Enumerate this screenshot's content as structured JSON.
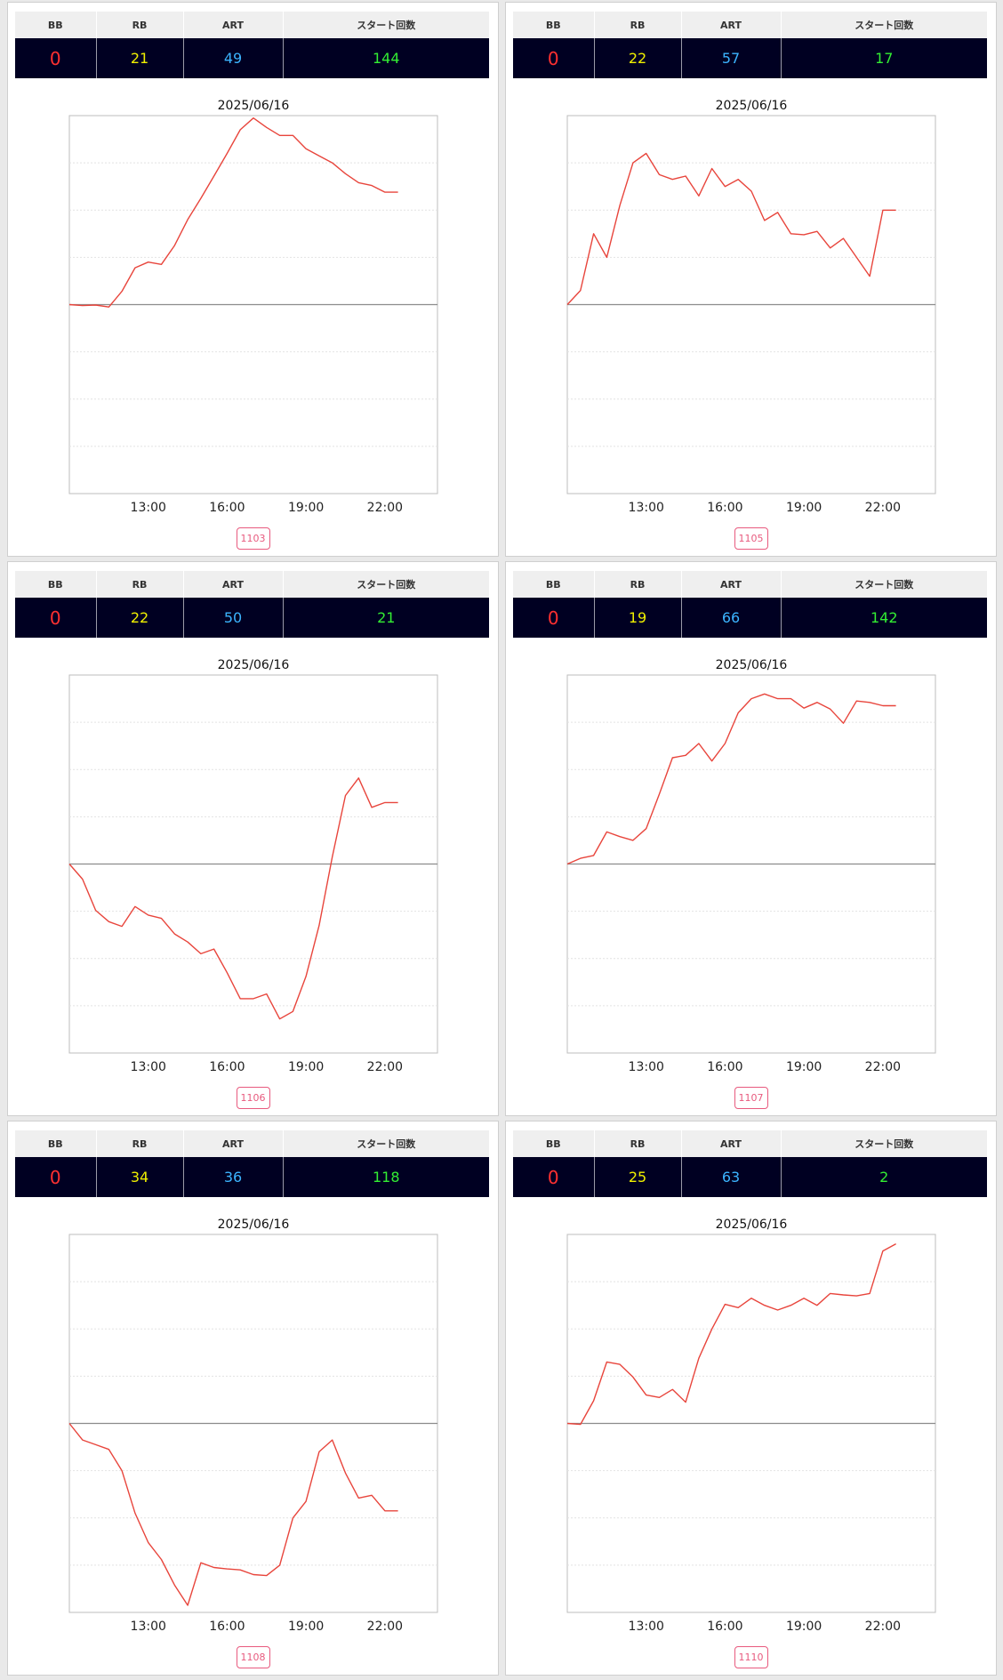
{
  "colors": {
    "bb": "#ff3030",
    "rb": "#f0f000",
    "art": "#3cb4ff",
    "start": "#33ee33",
    "line": "#e8453c",
    "machine": "#e85a7e"
  },
  "headers": {
    "bb": "BB",
    "rb": "RB",
    "art": "ART",
    "start": "スタート回数"
  },
  "x_ticks": [
    "13:00",
    "16:00",
    "19:00",
    "22:00"
  ],
  "cards": [
    {
      "machine_no": "1103",
      "stats": {
        "bb": "0",
        "rb": "21",
        "art": "49",
        "start": "144"
      },
      "chart_data": {
        "type": "line",
        "title": "2025/06/16",
        "x_ticks": [
          "13:00",
          "16:00",
          "19:00",
          "22:00"
        ],
        "ylim": [
          -4,
          4
        ],
        "y_grid": [
          -3,
          -2,
          -1,
          1,
          2,
          3
        ],
        "baseline": 0,
        "x": [
          10.0,
          10.5,
          11.0,
          11.5,
          12.0,
          12.5,
          13.0,
          13.5,
          14.0,
          14.5,
          15.0,
          15.5,
          16.0,
          16.5,
          17.0,
          17.5,
          18.0,
          18.5,
          19.0,
          19.5,
          20.0,
          20.5,
          21.0,
          21.5,
          22.0,
          22.5
        ],
        "y": [
          0.0,
          -0.02,
          -0.01,
          -0.05,
          0.28,
          0.78,
          0.9,
          0.85,
          1.25,
          1.8,
          2.25,
          2.72,
          3.2,
          3.7,
          3.95,
          3.75,
          3.58,
          3.58,
          3.3,
          3.15,
          3.0,
          2.77,
          2.58,
          2.52,
          2.38,
          2.38
        ]
      }
    },
    {
      "machine_no": "1105",
      "stats": {
        "bb": "0",
        "rb": "22",
        "art": "57",
        "start": "17"
      },
      "chart_data": {
        "type": "line",
        "title": "2025/06/16",
        "x_ticks": [
          "13:00",
          "16:00",
          "19:00",
          "22:00"
        ],
        "ylim": [
          -4,
          4
        ],
        "y_grid": [
          -3,
          -2,
          -1,
          1,
          2,
          3
        ],
        "baseline": 0,
        "x": [
          10.0,
          10.5,
          11.0,
          11.5,
          12.0,
          12.5,
          13.0,
          13.5,
          14.0,
          14.5,
          15.0,
          15.5,
          16.0,
          16.5,
          17.0,
          17.5,
          18.0,
          18.5,
          19.0,
          19.5,
          20.0,
          20.5,
          21.0,
          21.5,
          22.0,
          22.5
        ],
        "y": [
          0.0,
          0.3,
          1.5,
          1.0,
          2.1,
          3.0,
          3.2,
          2.75,
          2.65,
          2.72,
          2.3,
          2.88,
          2.5,
          2.65,
          2.4,
          1.78,
          1.95,
          1.5,
          1.48,
          1.55,
          1.2,
          1.4,
          1.0,
          0.6,
          2.0,
          2.0
        ]
      }
    },
    {
      "machine_no": "1106",
      "stats": {
        "bb": "0",
        "rb": "22",
        "art": "50",
        "start": "21"
      },
      "chart_data": {
        "type": "line",
        "title": "2025/06/16",
        "x_ticks": [
          "13:00",
          "16:00",
          "19:00",
          "22:00"
        ],
        "ylim": [
          -4,
          4
        ],
        "y_grid": [
          -3,
          -2,
          -1,
          1,
          2,
          3
        ],
        "baseline": 0,
        "x": [
          10.0,
          10.5,
          11.0,
          11.5,
          12.0,
          12.5,
          13.0,
          13.5,
          14.0,
          14.5,
          15.0,
          15.5,
          16.0,
          16.5,
          17.0,
          17.5,
          18.0,
          18.5,
          19.0,
          19.5,
          20.0,
          20.5,
          21.0,
          21.5,
          22.0,
          22.5
        ],
        "y": [
          0.0,
          -0.32,
          -0.98,
          -1.22,
          -1.32,
          -0.9,
          -1.08,
          -1.15,
          -1.48,
          -1.65,
          -1.9,
          -1.8,
          -2.3,
          -2.85,
          -2.85,
          -2.75,
          -3.28,
          -3.12,
          -2.38,
          -1.3,
          0.15,
          1.45,
          1.82,
          1.2,
          1.3,
          1.3
        ]
      }
    },
    {
      "machine_no": "1107",
      "stats": {
        "bb": "0",
        "rb": "19",
        "art": "66",
        "start": "142"
      },
      "chart_data": {
        "type": "line",
        "title": "2025/06/16",
        "x_ticks": [
          "13:00",
          "16:00",
          "19:00",
          "22:00"
        ],
        "ylim": [
          -4,
          4
        ],
        "y_grid": [
          -3,
          -2,
          -1,
          1,
          2,
          3
        ],
        "baseline": 0,
        "x": [
          10.0,
          10.5,
          11.0,
          11.5,
          12.0,
          12.5,
          13.0,
          13.5,
          14.0,
          14.5,
          15.0,
          15.5,
          16.0,
          16.5,
          17.0,
          17.5,
          18.0,
          18.5,
          19.0,
          19.5,
          20.0,
          20.5,
          21.0,
          21.5,
          22.0,
          22.5
        ],
        "y": [
          0.0,
          0.12,
          0.18,
          0.68,
          0.58,
          0.5,
          0.75,
          1.48,
          2.25,
          2.3,
          2.55,
          2.18,
          2.55,
          3.2,
          3.5,
          3.6,
          3.5,
          3.5,
          3.3,
          3.42,
          3.28,
          2.98,
          3.45,
          3.42,
          3.35,
          3.35
        ]
      }
    },
    {
      "machine_no": "1108",
      "stats": {
        "bb": "0",
        "rb": "34",
        "art": "36",
        "start": "118"
      },
      "chart_data": {
        "type": "line",
        "title": "2025/06/16",
        "x_ticks": [
          "13:00",
          "16:00",
          "19:00",
          "22:00"
        ],
        "ylim": [
          -4,
          4
        ],
        "y_grid": [
          -3,
          -2,
          -1,
          1,
          2,
          3
        ],
        "baseline": 0,
        "x": [
          10.0,
          10.5,
          11.0,
          11.5,
          12.0,
          12.5,
          13.0,
          13.5,
          14.0,
          14.5,
          15.0,
          15.5,
          16.0,
          16.5,
          17.0,
          17.5,
          18.0,
          18.5,
          19.0,
          19.5,
          20.0,
          20.5,
          21.0,
          21.5,
          22.0,
          22.5
        ],
        "y": [
          0.0,
          -0.35,
          -0.45,
          -0.55,
          -1.0,
          -1.9,
          -2.52,
          -2.88,
          -3.42,
          -3.85,
          -2.95,
          -3.05,
          -3.08,
          -3.1,
          -3.2,
          -3.22,
          -3.0,
          -2.0,
          -1.65,
          -0.6,
          -0.35,
          -1.05,
          -1.58,
          -1.52,
          -1.85,
          -1.85
        ]
      }
    },
    {
      "machine_no": "1110",
      "stats": {
        "bb": "0",
        "rb": "25",
        "art": "63",
        "start": "2"
      },
      "chart_data": {
        "type": "line",
        "title": "2025/06/16",
        "x_ticks": [
          "13:00",
          "16:00",
          "19:00",
          "22:00"
        ],
        "ylim": [
          -4,
          4
        ],
        "y_grid": [
          -3,
          -2,
          -1,
          1,
          2,
          3
        ],
        "baseline": 0,
        "x": [
          10.0,
          10.5,
          11.0,
          11.5,
          12.0,
          12.5,
          13.0,
          13.5,
          14.0,
          14.5,
          15.0,
          15.5,
          16.0,
          16.5,
          17.0,
          17.5,
          18.0,
          18.5,
          19.0,
          19.5,
          20.0,
          20.5,
          21.0,
          21.5,
          22.0,
          22.5
        ],
        "y": [
          0.0,
          -0.02,
          0.48,
          1.3,
          1.25,
          0.98,
          0.6,
          0.55,
          0.72,
          0.45,
          1.38,
          2.0,
          2.52,
          2.45,
          2.65,
          2.5,
          2.4,
          2.5,
          2.65,
          2.5,
          2.75,
          2.72,
          2.7,
          2.75,
          3.65,
          3.8
        ]
      }
    }
  ]
}
